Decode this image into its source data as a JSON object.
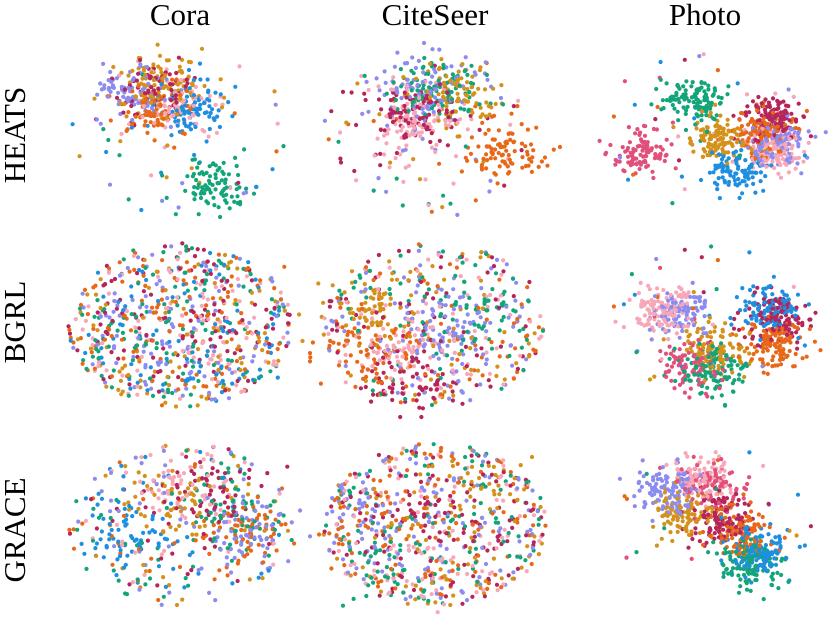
{
  "columns": [
    "Cora",
    "CiteSeer",
    "Photo"
  ],
  "rows": [
    "HEATS",
    "BGRL",
    "GRACE"
  ]
}
